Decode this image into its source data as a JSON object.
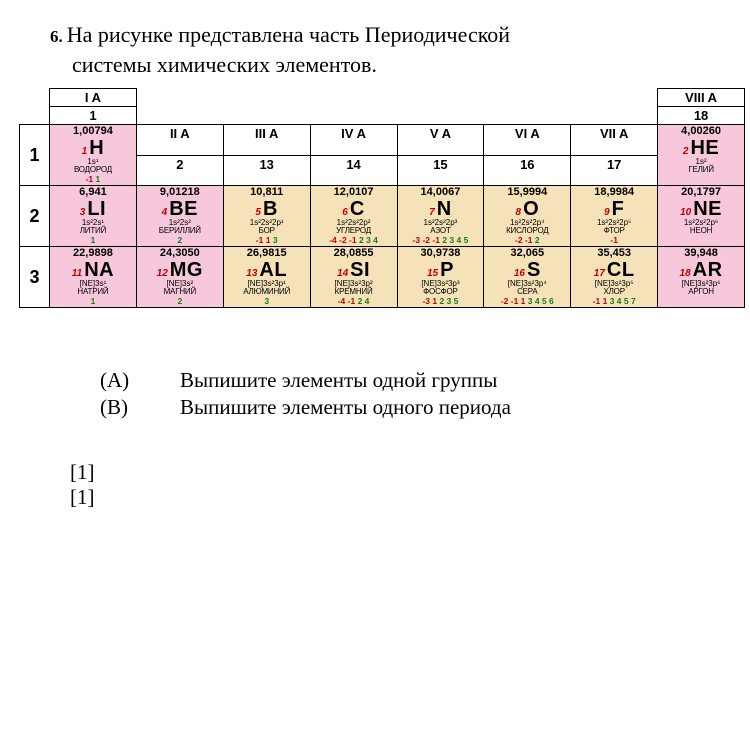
{
  "question": {
    "number": "6.",
    "text1": "На рисунке представлена часть Периодической",
    "text2": "системы химических элементов."
  },
  "groups_roman": [
    "I A",
    "II A",
    "III A",
    "IV A",
    "V A",
    "VI A",
    "VII A",
    "VIII A"
  ],
  "groups_num": [
    "1",
    "2",
    "13",
    "14",
    "15",
    "16",
    "17",
    "18"
  ],
  "period_labels": [
    "1",
    "2",
    "3"
  ],
  "colors": {
    "pink": "#f7c8dc",
    "tan": "#f5e2b8",
    "ox_neg": "#c00000",
    "ox_pos": "#1a7a1a",
    "z": "#c00000"
  },
  "elements": {
    "H": {
      "z": "1",
      "sym": "H",
      "mass": "1,00794",
      "cfg": "1s¹",
      "name": "ВОДОРОД",
      "ox_neg": "-1",
      "ox_pos": "1"
    },
    "He": {
      "z": "2",
      "sym": "HE",
      "mass": "4,00260",
      "cfg": "1s²",
      "name": "ГЕЛИЙ"
    },
    "Li": {
      "z": "3",
      "sym": "LI",
      "mass": "6,941",
      "cfg": "1s²2s¹",
      "name": "ЛИТИЙ",
      "ox_pos": "1"
    },
    "Be": {
      "z": "4",
      "sym": "BE",
      "mass": "9,01218",
      "cfg": "1s²2s²",
      "name": "БЕРИЛЛИЙ",
      "ox_pos": "2"
    },
    "B": {
      "z": "5",
      "sym": "B",
      "mass": "10,811",
      "cfg": "1s²2s²2p¹",
      "name": "БОР",
      "ox_neg": "-1 1",
      "ox_pos": "3"
    },
    "C": {
      "z": "6",
      "sym": "C",
      "mass": "12,0107",
      "cfg": "1s²2s²2p²",
      "name": "УГЛЕРОД",
      "ox_neg": "-4 -2 -1",
      "ox_pos": "2 3 4"
    },
    "N": {
      "z": "7",
      "sym": "N",
      "mass": "14,0067",
      "cfg": "1s²2s²2p³",
      "name": "АЗОТ",
      "ox_neg": "-3 -2 -1",
      "ox_pos": "2 3 4 5"
    },
    "O": {
      "z": "8",
      "sym": "O",
      "mass": "15,9994",
      "cfg": "1s²2s²2p⁴",
      "name": "КИСЛОРОД",
      "ox_neg": "-2 -1",
      "ox_pos": "2"
    },
    "F": {
      "z": "9",
      "sym": "F",
      "mass": "18,9984",
      "cfg": "1s²2s²2p⁵",
      "name": "ФТОР",
      "ox_neg": "-1"
    },
    "Ne": {
      "z": "10",
      "sym": "NE",
      "mass": "20,1797",
      "cfg": "1s²2s²2p⁶",
      "name": "НЕОН"
    },
    "Na": {
      "z": "11",
      "sym": "NA",
      "mass": "22,9898",
      "cfg": "[NE]3s¹",
      "name": "НАТРИЙ",
      "ox_pos": "1"
    },
    "Mg": {
      "z": "12",
      "sym": "MG",
      "mass": "24,3050",
      "cfg": "[NE]3s²",
      "name": "МАГНИЙ",
      "ox_pos": "2"
    },
    "Al": {
      "z": "13",
      "sym": "AL",
      "mass": "26,9815",
      "cfg": "[NE]3s²3p¹",
      "name": "АЛЮМИНИЙ",
      "ox_pos": "3"
    },
    "Si": {
      "z": "14",
      "sym": "SI",
      "mass": "28,0855",
      "cfg": "[NE]3s²3p²",
      "name": "КРЕМНИЙ",
      "ox_neg": "-4 -1",
      "ox_pos": "2 4"
    },
    "P": {
      "z": "15",
      "sym": "P",
      "mass": "30,9738",
      "cfg": "[NE]3s²3p³",
      "name": "ФОСФОР",
      "ox_neg": "-3 1",
      "ox_pos": "2 3 5"
    },
    "S": {
      "z": "16",
      "sym": "S",
      "mass": "32,065",
      "cfg": "[NE]3s²3p⁴",
      "name": "СЕРА",
      "ox_neg": "-2 -1 1",
      "ox_pos": "3 4 5 6"
    },
    "Cl": {
      "z": "17",
      "sym": "CL",
      "mass": "35,453",
      "cfg": "[NE]3s²3p⁵",
      "name": "ХЛОР",
      "ox_neg": "-1 1",
      "ox_pos": "3 4 5 7"
    },
    "Ar": {
      "z": "18",
      "sym": "AR",
      "mass": "39,948",
      "cfg": "[NE]3s²3p⁶",
      "name": "АРГОН"
    }
  },
  "tasks": {
    "a_label": "(A)",
    "a_text": "Выпишите элементы одной группы",
    "b_label": "(B)",
    "b_text": "Выпишите элементы одного периода",
    "score1": "[1]",
    "score2": "[1]"
  }
}
